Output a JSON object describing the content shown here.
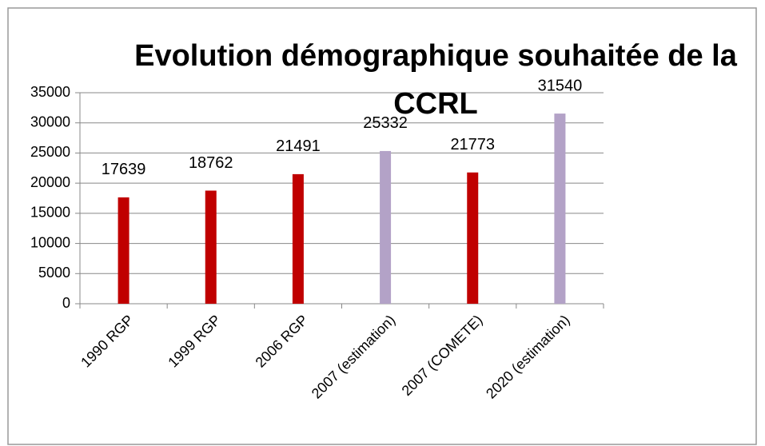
{
  "chart_data": {
    "type": "bar",
    "title": "Evolution démographique souhaitée de la CCRL",
    "categories": [
      "1990 RGP",
      "1999 RGP",
      "2006 RGP",
      "2007 (estimation)",
      "2007 (COMETE)",
      "2020 (estimation)"
    ],
    "values": [
      17639,
      18762,
      21491,
      25332,
      21773,
      31540
    ],
    "colors": [
      "#c00000",
      "#c00000",
      "#c00000",
      "#b3a2c7",
      "#c00000",
      "#b3a2c7"
    ],
    "ylim": [
      0,
      35000
    ],
    "yticks": [
      0,
      5000,
      10000,
      15000,
      20000,
      25000,
      30000,
      35000
    ],
    "grid": true
  }
}
